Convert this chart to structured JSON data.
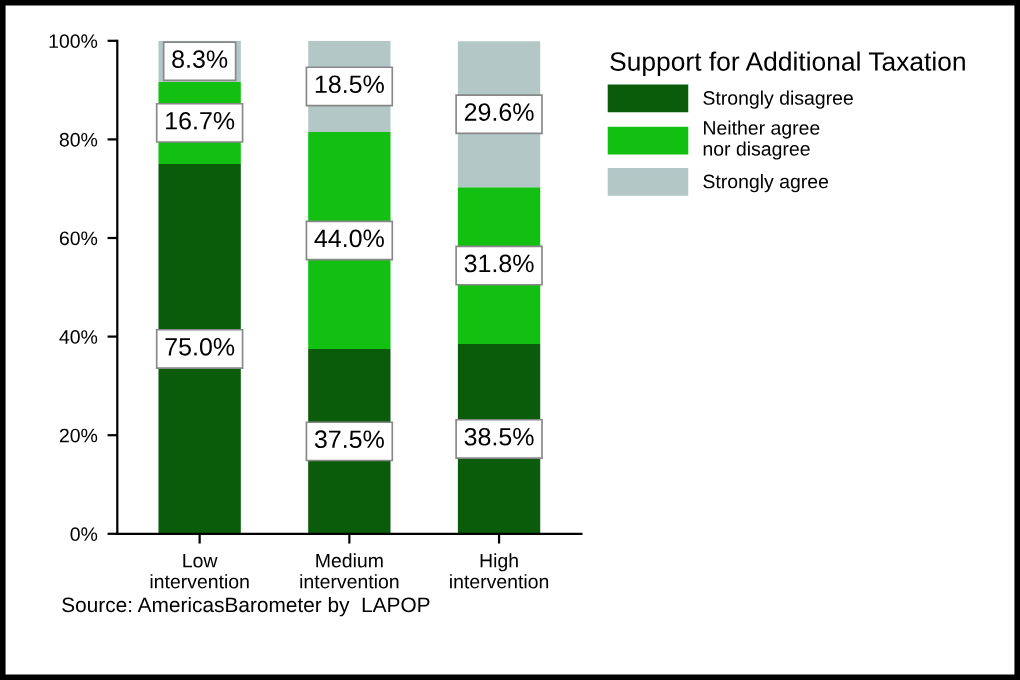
{
  "chart_data": {
    "type": "bar",
    "stacked": true,
    "categories": [
      "Low\nintervention",
      "Medium\nintervention",
      "High\nintervention"
    ],
    "series": [
      {
        "name": "Strongly disagree",
        "color": "#0a5c0a",
        "values": [
          75.0,
          37.5,
          38.5
        ],
        "value_labels": [
          "75.0%",
          "37.5%",
          "38.5%"
        ]
      },
      {
        "name": "Neither agree\nnor disagree",
        "color": "#11c011",
        "values": [
          16.7,
          44.0,
          31.8
        ],
        "value_labels": [
          "16.7%",
          "44.0%",
          "31.8%"
        ]
      },
      {
        "name": "Strongly agree",
        "color": "#b3c7c7",
        "values": [
          8.3,
          18.5,
          29.6
        ],
        "value_labels": [
          "8.3%",
          "18.5%",
          "29.6%"
        ]
      }
    ],
    "ylim": [
      0,
      100
    ],
    "yticks": [
      {
        "value": 0,
        "label": "0%"
      },
      {
        "value": 20,
        "label": "20%"
      },
      {
        "value": 40,
        "label": "40%"
      },
      {
        "value": 60,
        "label": "60%"
      },
      {
        "value": 80,
        "label": "80%"
      },
      {
        "value": 100,
        "label": "100%"
      }
    ],
    "legend": "right",
    "legend_title": "Support for Additional Taxation",
    "grid": false,
    "annotations": [
      "Source: AmericasBarometer by  LAPOP"
    ]
  }
}
